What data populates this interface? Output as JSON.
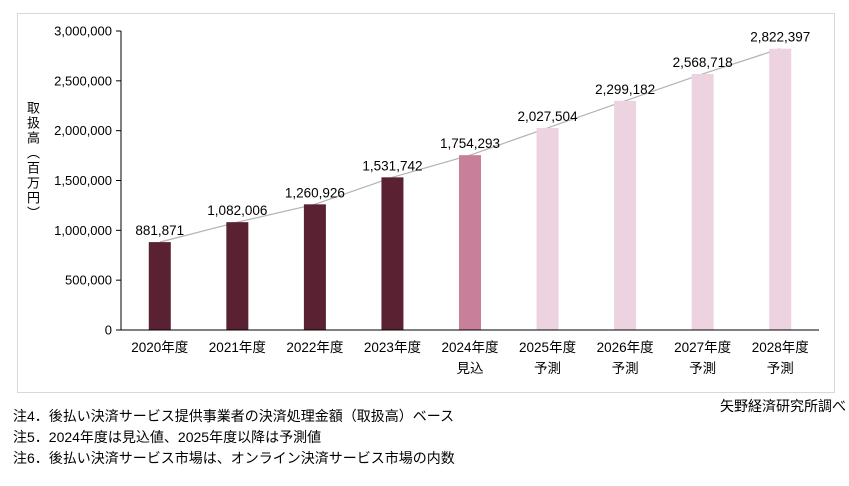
{
  "chart_data": {
    "type": "bar",
    "overlay": "line",
    "title": "",
    "xlabel": "",
    "ylabel": "取扱高（百万円）",
    "categories": [
      "2020年度",
      "2021年度",
      "2022年度",
      "2023年度",
      "2024年度",
      "2025年度",
      "2026年度",
      "2027年度",
      "2028年度"
    ],
    "category_sublabels": [
      "",
      "",
      "",
      "",
      "見込",
      "予測",
      "予測",
      "予測",
      "予測"
    ],
    "values": [
      881871,
      1082006,
      1260926,
      1531742,
      1754293,
      2027504,
      2299182,
      2568718,
      2822397
    ],
    "value_labels": [
      "881,871",
      "1,082,006",
      "1,260,926",
      "1,531,742",
      "1,754,293",
      "2,027,504",
      "2,299,182",
      "2,568,718",
      "2,822,397"
    ],
    "ylim": [
      0,
      3000000
    ],
    "ytick_interval": 500000,
    "ytick_labels": [
      "0",
      "500,000",
      "1,000,000",
      "1,500,000",
      "2,000,000",
      "2,500,000",
      "3,000,000"
    ],
    "grid": false,
    "legend": "none",
    "bar_types": [
      "actual",
      "actual",
      "actual",
      "actual",
      "estimate",
      "forecast",
      "forecast",
      "forecast",
      "forecast"
    ],
    "colors": {
      "actual": "#5a2132",
      "estimate": "#c8809a",
      "forecast": "#ecd3df",
      "line": "#b3b3b3",
      "axis": "#000000",
      "frame_border": "#d8d8d8"
    }
  },
  "notes": [
    "注4．後払い決済サービス提供事業者の決済処理金額（取扱高）ベース",
    "注5．2024年度は見込値、2025年度以降は予測値",
    "注6．後払い決済サービス市場は、オンライン決済サービス市場の内数"
  ],
  "source": "矢野経済研究所調べ"
}
